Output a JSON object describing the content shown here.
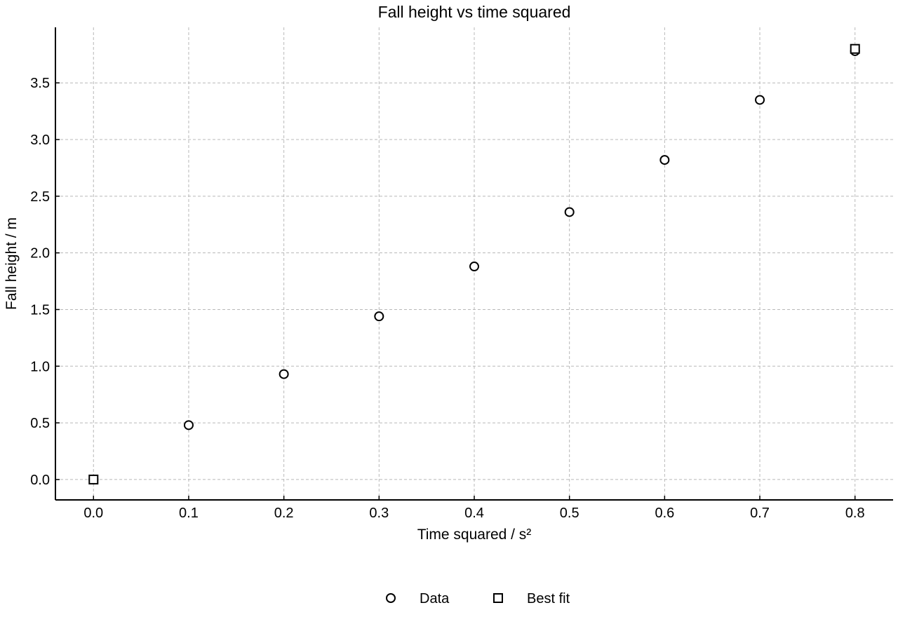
{
  "chart_data": {
    "type": "scatter",
    "title": "Fall height vs time squared",
    "xlabel": "Time squared / s²",
    "ylabel": "Fall height / m",
    "xlim": [
      -0.04,
      0.84
    ],
    "ylim": [
      -0.18,
      3.99
    ],
    "xticks": [
      0.0,
      0.1,
      0.2,
      0.3,
      0.4,
      0.5,
      0.6,
      0.7,
      0.8
    ],
    "xtick_labels": [
      "0.0",
      "0.1",
      "0.2",
      "0.3",
      "0.4",
      "0.5",
      "0.6",
      "0.7",
      "0.8"
    ],
    "yticks": [
      0.0,
      0.5,
      1.0,
      1.5,
      2.0,
      2.5,
      3.0,
      3.5
    ],
    "ytick_labels": [
      "0.0",
      "0.5",
      "1.0",
      "1.5",
      "2.0",
      "2.5",
      "3.0",
      "3.5"
    ],
    "grid": true,
    "legend_position": "bottom-center",
    "series": [
      {
        "name": "Data",
        "marker": "circle",
        "x": [
          0.0,
          0.1,
          0.2,
          0.3,
          0.4,
          0.5,
          0.6,
          0.7,
          0.8
        ],
        "y": [
          0.0,
          0.48,
          0.93,
          1.44,
          1.88,
          2.36,
          2.82,
          3.35,
          3.78
        ]
      },
      {
        "name": "Best fit",
        "marker": "square",
        "x": [
          0.0,
          0.8
        ],
        "y": [
          0.0,
          3.8
        ]
      }
    ],
    "colors": {
      "marker_edge": "#000000",
      "marker_face": "#ffffff",
      "grid": "#b8b8b8"
    }
  }
}
